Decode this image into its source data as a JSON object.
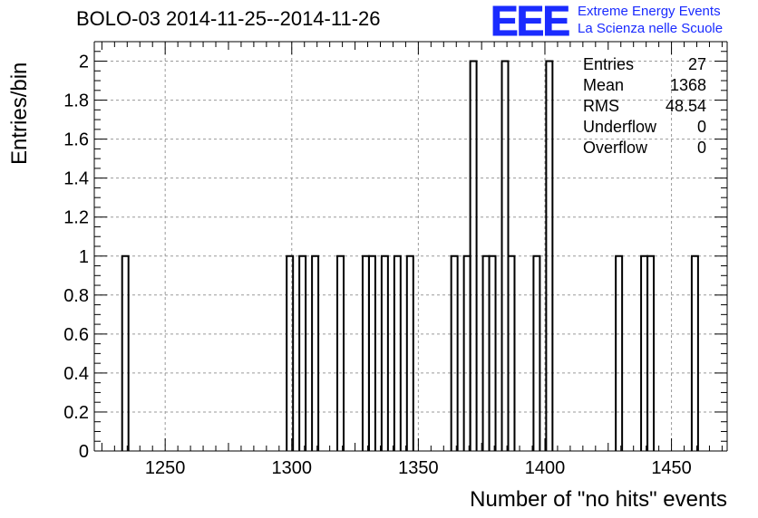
{
  "title": "BOLO-03 2014-11-25--2014-11-26",
  "logo": {
    "mark": "EEE",
    "line1": "Extreme Energy Events",
    "line2": "La Scienza nelle Scuole"
  },
  "stats": [
    {
      "label": "Entries",
      "value": "27"
    },
    {
      "label": "Mean",
      "value": "1368"
    },
    {
      "label": "RMS",
      "value": "48.54"
    },
    {
      "label": "Underflow",
      "value": "0"
    },
    {
      "label": "Overflow",
      "value": "0"
    }
  ],
  "chart_data": {
    "type": "bar",
    "title": "BOLO-03 2014-11-25--2014-11-26",
    "xlabel": "Number of \"no hits\" events",
    "ylabel": "Entries/bin",
    "xlim": [
      1222,
      1472
    ],
    "ylim": [
      0,
      2.1
    ],
    "bin_width": 2.5,
    "x_ticks": [
      "1250",
      "1300",
      "1350",
      "1400",
      "1450"
    ],
    "x_tick_values": [
      1250,
      1300,
      1350,
      1400,
      1450
    ],
    "y_ticks": [
      "0",
      "0.2",
      "0.4",
      "0.6",
      "0.8",
      "1",
      "1.2",
      "1.4",
      "1.6",
      "1.8",
      "2"
    ],
    "y_tick_values": [
      0,
      0.2,
      0.4,
      0.6,
      0.8,
      1,
      1.2,
      1.4,
      1.6,
      1.8,
      2
    ],
    "grid": true,
    "bins": [
      {
        "x": 1233.0,
        "count": 1
      },
      {
        "x": 1298.0,
        "count": 1
      },
      {
        "x": 1303.0,
        "count": 1
      },
      {
        "x": 1308.0,
        "count": 1
      },
      {
        "x": 1318.0,
        "count": 1
      },
      {
        "x": 1328.0,
        "count": 1
      },
      {
        "x": 1330.5,
        "count": 1
      },
      {
        "x": 1335.5,
        "count": 1
      },
      {
        "x": 1340.5,
        "count": 1
      },
      {
        "x": 1345.5,
        "count": 1
      },
      {
        "x": 1363.0,
        "count": 1
      },
      {
        "x": 1368.0,
        "count": 1
      },
      {
        "x": 1370.5,
        "count": 2
      },
      {
        "x": 1375.5,
        "count": 1
      },
      {
        "x": 1378.0,
        "count": 1
      },
      {
        "x": 1383.0,
        "count": 2
      },
      {
        "x": 1385.5,
        "count": 1
      },
      {
        "x": 1395.5,
        "count": 1
      },
      {
        "x": 1400.5,
        "count": 2
      },
      {
        "x": 1428.0,
        "count": 1
      },
      {
        "x": 1438.0,
        "count": 1
      },
      {
        "x": 1440.5,
        "count": 1
      },
      {
        "x": 1458.0,
        "count": 1
      }
    ]
  }
}
